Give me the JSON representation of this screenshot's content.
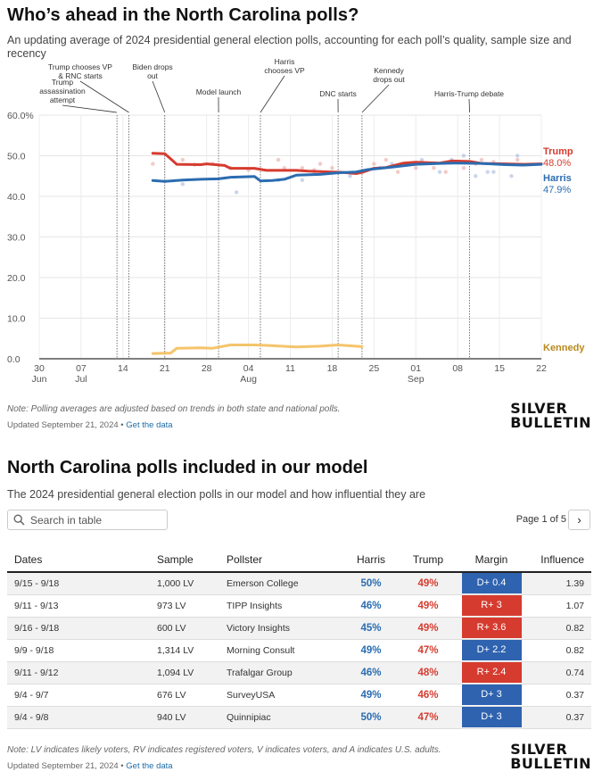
{
  "header": {
    "title": "Who’s ahead in the North Carolina polls?",
    "subtitle": "An updating average of 2024 presidential general election polls, accounting for each poll’s quality, sample size and recency"
  },
  "chart_data": {
    "type": "line",
    "x_axis": {
      "tick_labels": [
        "30",
        "07",
        "14",
        "21",
        "28",
        "04",
        "11",
        "18",
        "25",
        "01",
        "08",
        "15",
        "22"
      ],
      "month_labels": [
        "Jun",
        "Jul",
        "Aug",
        "Sep"
      ],
      "range": [
        "2024-06-30",
        "2024-09-22"
      ]
    },
    "y_axis": {
      "range": [
        0,
        60
      ],
      "tick_labels": [
        "0.0",
        "10.0",
        "20.0",
        "30.0",
        "40.0",
        "50.0",
        "60.0%"
      ]
    },
    "grid": true,
    "events": [
      {
        "date": "2024-07-13",
        "label": "Trump assassination attempt"
      },
      {
        "date": "2024-07-15",
        "label": "Trump chooses VP & RNC starts"
      },
      {
        "date": "2024-07-21",
        "label": "Biden drops out"
      },
      {
        "date": "2024-07-30",
        "label": "Model launch"
      },
      {
        "date": "2024-08-06",
        "label": "Harris chooses VP"
      },
      {
        "date": "2024-08-19",
        "label": "DNC starts"
      },
      {
        "date": "2024-08-23",
        "label": "Kennedy drops out"
      },
      {
        "date": "2024-09-10",
        "label": "Harris-Trump debate"
      }
    ],
    "series": [
      {
        "name": "Trump",
        "color": "#d63b2f",
        "end_label": "48.0%",
        "points": [
          [
            "2024-07-19",
            50.6
          ],
          [
            "2024-07-21",
            50.5
          ],
          [
            "2024-07-22",
            49.2
          ],
          [
            "2024-07-23",
            47.9
          ],
          [
            "2024-07-27",
            47.8
          ],
          [
            "2024-07-28",
            48.0
          ],
          [
            "2024-07-31",
            47.6
          ],
          [
            "2024-08-01",
            46.9
          ],
          [
            "2024-08-05",
            46.9
          ],
          [
            "2024-08-07",
            46.4
          ],
          [
            "2024-08-12",
            46.4
          ],
          [
            "2024-08-14",
            46.2
          ],
          [
            "2024-08-18",
            46.0
          ],
          [
            "2024-08-20",
            45.9
          ],
          [
            "2024-08-22",
            45.6
          ],
          [
            "2024-08-23",
            45.9
          ],
          [
            "2024-08-25",
            46.9
          ],
          [
            "2024-08-27",
            47.1
          ],
          [
            "2024-08-30",
            48.2
          ],
          [
            "2024-09-01",
            48.4
          ],
          [
            "2024-09-05",
            48.2
          ],
          [
            "2024-09-07",
            48.7
          ],
          [
            "2024-09-10",
            48.6
          ],
          [
            "2024-09-12",
            48.1
          ],
          [
            "2024-09-16",
            48.0
          ],
          [
            "2024-09-19",
            47.9
          ],
          [
            "2024-09-22",
            48.0
          ]
        ]
      },
      {
        "name": "Harris",
        "color": "#2b6cb0",
        "end_label": "47.9%",
        "points": [
          [
            "2024-07-19",
            43.9
          ],
          [
            "2024-07-21",
            43.7
          ],
          [
            "2024-07-24",
            44.0
          ],
          [
            "2024-07-27",
            44.2
          ],
          [
            "2024-07-30",
            44.3
          ],
          [
            "2024-08-01",
            44.7
          ],
          [
            "2024-08-05",
            44.9
          ],
          [
            "2024-08-06",
            43.8
          ],
          [
            "2024-08-08",
            43.9
          ],
          [
            "2024-08-10",
            44.2
          ],
          [
            "2024-08-12",
            45.2
          ],
          [
            "2024-08-16",
            45.4
          ],
          [
            "2024-08-19",
            45.8
          ],
          [
            "2024-08-22",
            46.0
          ],
          [
            "2024-08-24",
            46.6
          ],
          [
            "2024-08-28",
            47.2
          ],
          [
            "2024-09-01",
            47.9
          ],
          [
            "2024-09-05",
            48.1
          ],
          [
            "2024-09-08",
            48.2
          ],
          [
            "2024-09-12",
            48.1
          ],
          [
            "2024-09-16",
            47.8
          ],
          [
            "2024-09-19",
            47.7
          ],
          [
            "2024-09-22",
            47.9
          ]
        ]
      },
      {
        "name": "Kennedy",
        "color": "#f5c46b",
        "points": [
          [
            "2024-07-19",
            1.3
          ],
          [
            "2024-07-22",
            1.4
          ],
          [
            "2024-07-23",
            2.6
          ],
          [
            "2024-07-27",
            2.7
          ],
          [
            "2024-07-29",
            2.6
          ],
          [
            "2024-08-01",
            3.4
          ],
          [
            "2024-08-05",
            3.4
          ],
          [
            "2024-08-07",
            3.3
          ],
          [
            "2024-08-12",
            2.9
          ],
          [
            "2024-08-16",
            3.1
          ],
          [
            "2024-08-19",
            3.4
          ],
          [
            "2024-08-23",
            3.0
          ]
        ]
      }
    ],
    "poll_dots": {
      "trump": [
        [
          "2024-07-19",
          48.0
        ],
        [
          "2024-07-24",
          49.0
        ],
        [
          "2024-07-26",
          47.8
        ],
        [
          "2024-07-29",
          48.0
        ],
        [
          "2024-08-01",
          47.0
        ],
        [
          "2024-08-04",
          46.5
        ],
        [
          "2024-08-09",
          49.0
        ],
        [
          "2024-08-10",
          47.0
        ],
        [
          "2024-08-13",
          47.0
        ],
        [
          "2024-08-15",
          46.5
        ],
        [
          "2024-08-16",
          48.0
        ],
        [
          "2024-08-18",
          47.0
        ],
        [
          "2024-08-25",
          48.0
        ],
        [
          "2024-08-27",
          49.0
        ],
        [
          "2024-08-29",
          46.0
        ],
        [
          "2024-09-01",
          47.0
        ],
        [
          "2024-09-04",
          47.0
        ],
        [
          "2024-09-06",
          46.0
        ],
        [
          "2024-09-09",
          47.0
        ],
        [
          "2024-09-11",
          48.0
        ],
        [
          "2024-09-12",
          49.0
        ],
        [
          "2024-09-14",
          48.5
        ],
        [
          "2024-09-18",
          49.0
        ]
      ],
      "harris": [
        [
          "2024-07-24",
          43.0
        ],
        [
          "2024-08-02",
          41.0
        ],
        [
          "2024-08-09",
          44.0
        ],
        [
          "2024-08-13",
          44.0
        ],
        [
          "2024-08-15",
          46.0
        ],
        [
          "2024-08-21",
          45.0
        ],
        [
          "2024-08-26",
          47.0
        ],
        [
          "2024-08-28",
          48.0
        ],
        [
          "2024-09-02",
          49.0
        ],
        [
          "2024-09-05",
          46.0
        ],
        [
          "2024-09-07",
          49.0
        ],
        [
          "2024-09-09",
          50.0
        ],
        [
          "2024-09-11",
          45.0
        ],
        [
          "2024-09-13",
          46.0
        ],
        [
          "2024-09-14",
          46.0
        ],
        [
          "2024-09-17",
          45.0
        ],
        [
          "2024-09-18",
          50.0
        ]
      ]
    }
  },
  "notes": {
    "chart_note": "Note: Polling averages are adjusted based on trends in both state and national polls.",
    "updated": "Updated September 21, 2024 •",
    "get_data": "Get the data",
    "table_note": "Note: LV indicates likely voters, RV indicates registered voters, V indicates voters, and A indicates U.S. adults.",
    "updated2": "Updated September 21, 2024 •",
    "get_data2": "Get the data"
  },
  "logo": {
    "line1": "SILVER",
    "line2": "BULLETIN"
  },
  "table_section": {
    "title": "North Carolina polls included in our model",
    "subtitle": "The 2024 presidential general election polls in our model and how influential they are",
    "search_placeholder": "Search in table",
    "pager": "Page 1 of 5",
    "next_glyph": "›",
    "columns": [
      "Dates",
      "Sample",
      "Pollster",
      "Harris",
      "Trump",
      "Margin",
      "Influence"
    ],
    "colors": {
      "dem": "#2f63b0",
      "rep": "#d63b2f"
    },
    "rows": [
      {
        "dates": "9/15 - 9/18",
        "sample": "1,000 LV",
        "pollster": "Emerson College",
        "harris": "50%",
        "trump": "49%",
        "margin": "D+ 0.4",
        "party": "D",
        "influence": "1.39"
      },
      {
        "dates": "9/11 - 9/13",
        "sample": "973 LV",
        "pollster": "TIPP Insights",
        "harris": "46%",
        "trump": "49%",
        "margin": "R+ 3",
        "party": "R",
        "influence": "1.07"
      },
      {
        "dates": "9/16 - 9/18",
        "sample": "600 LV",
        "pollster": "Victory Insights",
        "harris": "45%",
        "trump": "49%",
        "margin": "R+ 3.6",
        "party": "R",
        "influence": "0.82"
      },
      {
        "dates": "9/9 - 9/18",
        "sample": "1,314 LV",
        "pollster": "Morning Consult",
        "harris": "49%",
        "trump": "47%",
        "margin": "D+ 2.2",
        "party": "D",
        "influence": "0.82"
      },
      {
        "dates": "9/11 - 9/12",
        "sample": "1,094 LV",
        "pollster": "Trafalgar Group",
        "harris": "46%",
        "trump": "48%",
        "margin": "R+ 2.4",
        "party": "R",
        "influence": "0.74"
      },
      {
        "dates": "9/4 - 9/7",
        "sample": "676 LV",
        "pollster": "SurveyUSA",
        "harris": "49%",
        "trump": "46%",
        "margin": "D+ 3",
        "party": "D",
        "influence": "0.37"
      },
      {
        "dates": "9/4 - 9/8",
        "sample": "940 LV",
        "pollster": "Quinnipiac",
        "harris": "50%",
        "trump": "47%",
        "margin": "D+ 3",
        "party": "D",
        "influence": "0.37"
      }
    ]
  }
}
